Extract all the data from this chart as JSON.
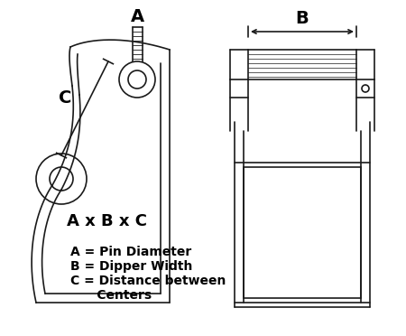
{
  "background_color": "#ffffff",
  "line_color": "#1a1a1a",
  "text_color": "#000000",
  "label_A": "A",
  "label_B": "B",
  "label_C": "C",
  "formula_text": "A x B x C",
  "legend_lines": [
    "A = Pin Diameter",
    "B = Dipper Width",
    "C = Distance between",
    "      Centers"
  ],
  "formula_fontsize": 13,
  "legend_fontsize": 10,
  "dim_label_fontsize": 14
}
